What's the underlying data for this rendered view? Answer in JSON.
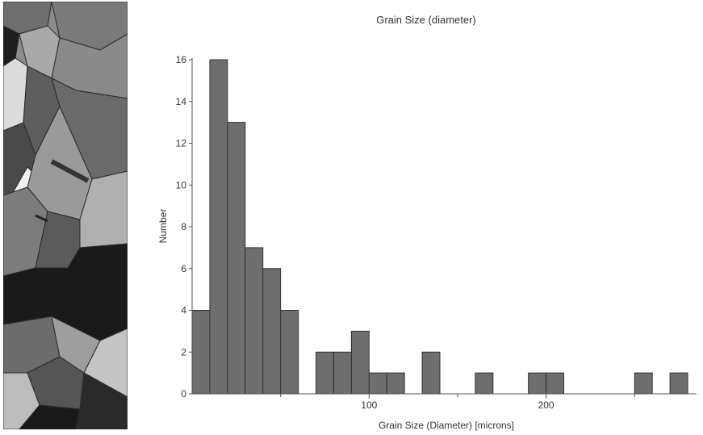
{
  "chart_data": {
    "type": "bar",
    "title": "Grain Size (diameter)",
    "xlabel": "Grain Size (Diameter) [microns]",
    "ylabel": "Number",
    "bin_width": 10,
    "xlim": [
      0,
      285
    ],
    "ylim": [
      0,
      16
    ],
    "xticks": [
      100,
      200
    ],
    "yticks": [
      0,
      2,
      4,
      6,
      8,
      10,
      12,
      14,
      16
    ],
    "bins": [
      {
        "x0": 0,
        "value": 4
      },
      {
        "x0": 10,
        "value": 16
      },
      {
        "x0": 20,
        "value": 13
      },
      {
        "x0": 30,
        "value": 7
      },
      {
        "x0": 40,
        "value": 6
      },
      {
        "x0": 50,
        "value": 4
      },
      {
        "x0": 70,
        "value": 2
      },
      {
        "x0": 80,
        "value": 2
      },
      {
        "x0": 90,
        "value": 3
      },
      {
        "x0": 100,
        "value": 1
      },
      {
        "x0": 110,
        "value": 1
      },
      {
        "x0": 130,
        "value": 2
      },
      {
        "x0": 160,
        "value": 1
      },
      {
        "x0": 190,
        "value": 1
      },
      {
        "x0": 200,
        "value": 1
      },
      {
        "x0": 250,
        "value": 1
      },
      {
        "x0": 270,
        "value": 1
      }
    ],
    "grid": false,
    "bar_color": "#6e6e6e",
    "bar_stroke": "#333333"
  }
}
